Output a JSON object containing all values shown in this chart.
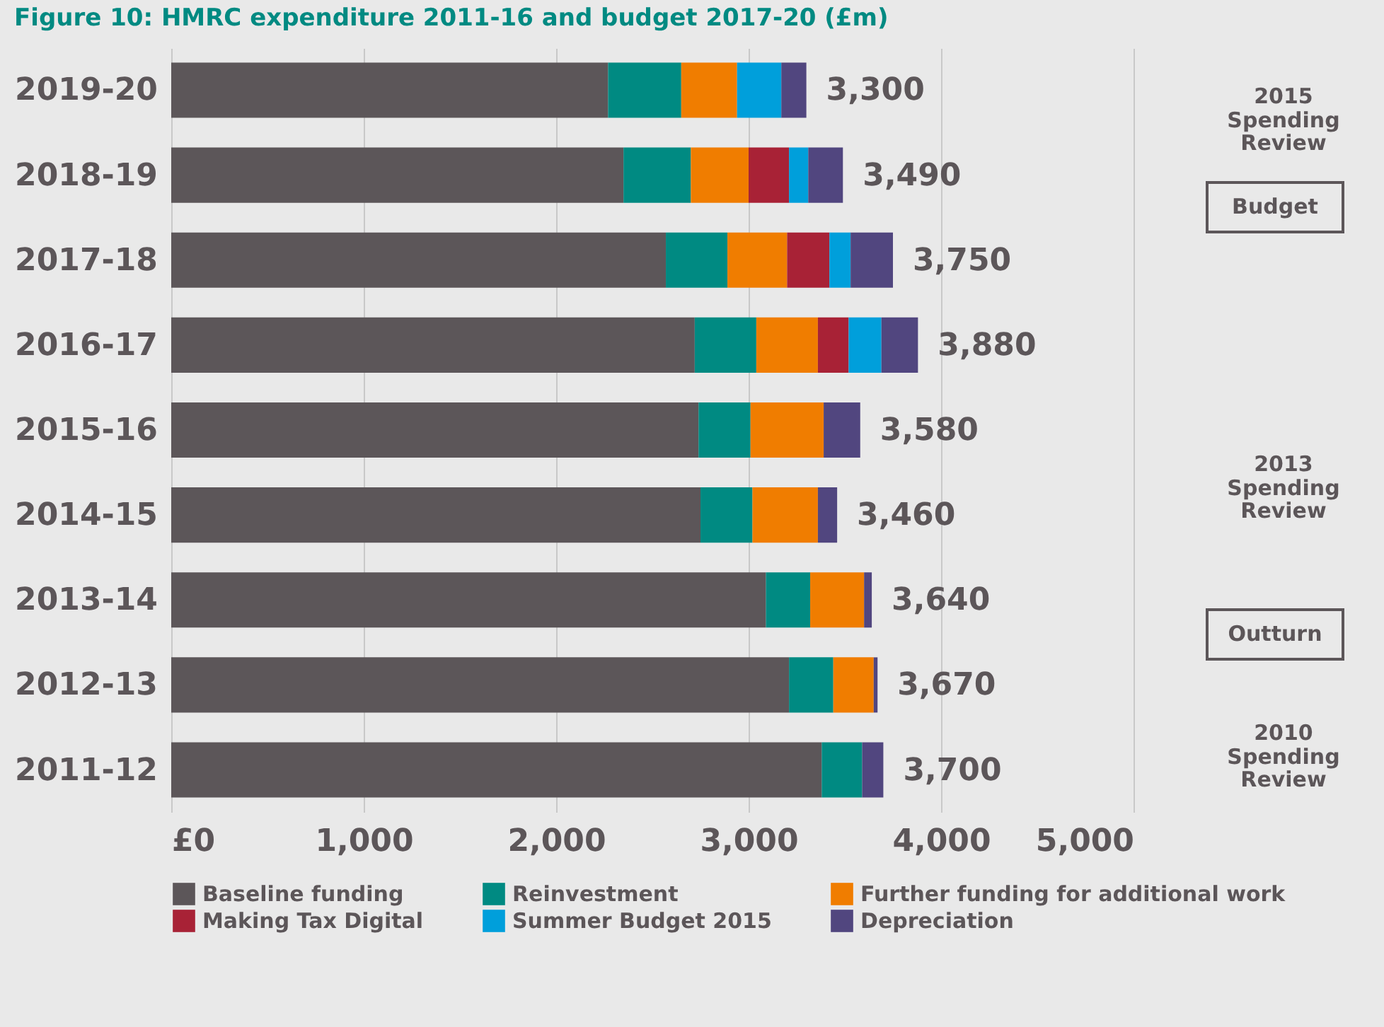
{
  "chart_data": {
    "type": "bar",
    "orientation": "horizontal",
    "stacked": true,
    "title": "Figure 10: HMRC expenditure 2011-16 and budget 2017-20 (£m)",
    "categories": [
      "2019-20",
      "2018-19",
      "2017-18",
      "2016-17",
      "2015-16",
      "2014-15",
      "2013-14",
      "2012-13",
      "2011-12"
    ],
    "series": [
      {
        "name": "Baseline funding",
        "color": "#5c5659",
        "values": [
          2270,
          2350,
          2570,
          2720,
          2740,
          2750,
          3090,
          3210,
          3380
        ]
      },
      {
        "name": "Reinvestment",
        "color": "#008a82",
        "values": [
          380,
          350,
          320,
          320,
          270,
          270,
          230,
          230,
          210
        ]
      },
      {
        "name": "Further funding for additional work",
        "color": "#f07d00",
        "values": [
          290,
          300,
          310,
          320,
          380,
          340,
          280,
          210,
          null
        ]
      },
      {
        "name": "Making Tax Digital",
        "color": "#a82236",
        "values": [
          null,
          210,
          220,
          160,
          null,
          null,
          null,
          null,
          null
        ]
      },
      {
        "name": "Summer Budget 2015",
        "color": "#009fdb",
        "values": [
          230,
          100,
          110,
          170,
          null,
          null,
          null,
          null,
          null
        ]
      },
      {
        "name": "Depreciation",
        "color": "#51467f",
        "values": [
          130,
          180,
          220,
          190,
          190,
          100,
          40,
          20,
          110
        ]
      }
    ],
    "totals": [
      "3,300",
      "3,490",
      "3,750",
      "3,880",
      "3,580",
      "3,460",
      "3,640",
      "3,670",
      "3,700"
    ],
    "xlim": [
      0,
      5000
    ],
    "xticks": [
      {
        "value": 0,
        "label": "£0"
      },
      {
        "value": 1000,
        "label": "1,000"
      },
      {
        "value": 2000,
        "label": "2,000"
      },
      {
        "value": 3000,
        "label": "3,000"
      },
      {
        "value": 4000,
        "label": "4,000"
      },
      {
        "value": 5000,
        "label": "5,000"
      }
    ],
    "grid": "x",
    "legend": "bottom",
    "annotations": [
      "2015 Spending Review",
      "Budget",
      "2013 Spending Review",
      "Outturn",
      "2010 Spending Review"
    ]
  }
}
